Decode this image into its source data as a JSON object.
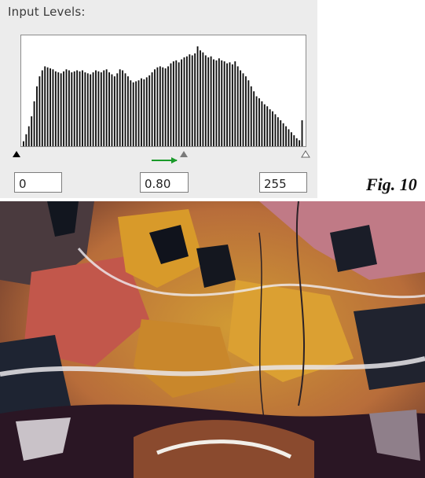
{
  "panel": {
    "title": "Input Levels:",
    "black_input": "0",
    "gamma_input": "0.80",
    "white_input": "255"
  },
  "histogram": {
    "bars": [
      0.05,
      0.12,
      0.2,
      0.3,
      0.45,
      0.6,
      0.7,
      0.76,
      0.8,
      0.79,
      0.78,
      0.77,
      0.75,
      0.74,
      0.73,
      0.75,
      0.77,
      0.76,
      0.74,
      0.75,
      0.76,
      0.75,
      0.76,
      0.74,
      0.73,
      0.72,
      0.74,
      0.76,
      0.75,
      0.74,
      0.76,
      0.77,
      0.74,
      0.72,
      0.7,
      0.73,
      0.77,
      0.76,
      0.73,
      0.7,
      0.66,
      0.64,
      0.65,
      0.66,
      0.68,
      0.67,
      0.69,
      0.71,
      0.74,
      0.77,
      0.79,
      0.8,
      0.79,
      0.78,
      0.8,
      0.83,
      0.85,
      0.86,
      0.84,
      0.87,
      0.89,
      0.9,
      0.92,
      0.91,
      0.93,
      1.0,
      0.96,
      0.94,
      0.91,
      0.89,
      0.9,
      0.87,
      0.86,
      0.88,
      0.86,
      0.85,
      0.83,
      0.84,
      0.82,
      0.85,
      0.8,
      0.76,
      0.73,
      0.7,
      0.66,
      0.6,
      0.55,
      0.5,
      0.48,
      0.45,
      0.42,
      0.4,
      0.37,
      0.35,
      0.32,
      0.29,
      0.26,
      0.23,
      0.2,
      0.17,
      0.14,
      0.11,
      0.08,
      0.06,
      0.26
    ],
    "bar_color": "#111111",
    "bg_color": "#ffffff"
  },
  "sliders": {
    "black_point_icon": "black-triangle",
    "gamma_icon": "gray-triangle",
    "white_point_icon": "white-triangle",
    "arrow_color": "#1a9a2a",
    "gamma_position_fraction": 0.59
  },
  "figure": {
    "label": "Fig. 10"
  },
  "photo": {
    "description_icon": "agate-photo"
  }
}
